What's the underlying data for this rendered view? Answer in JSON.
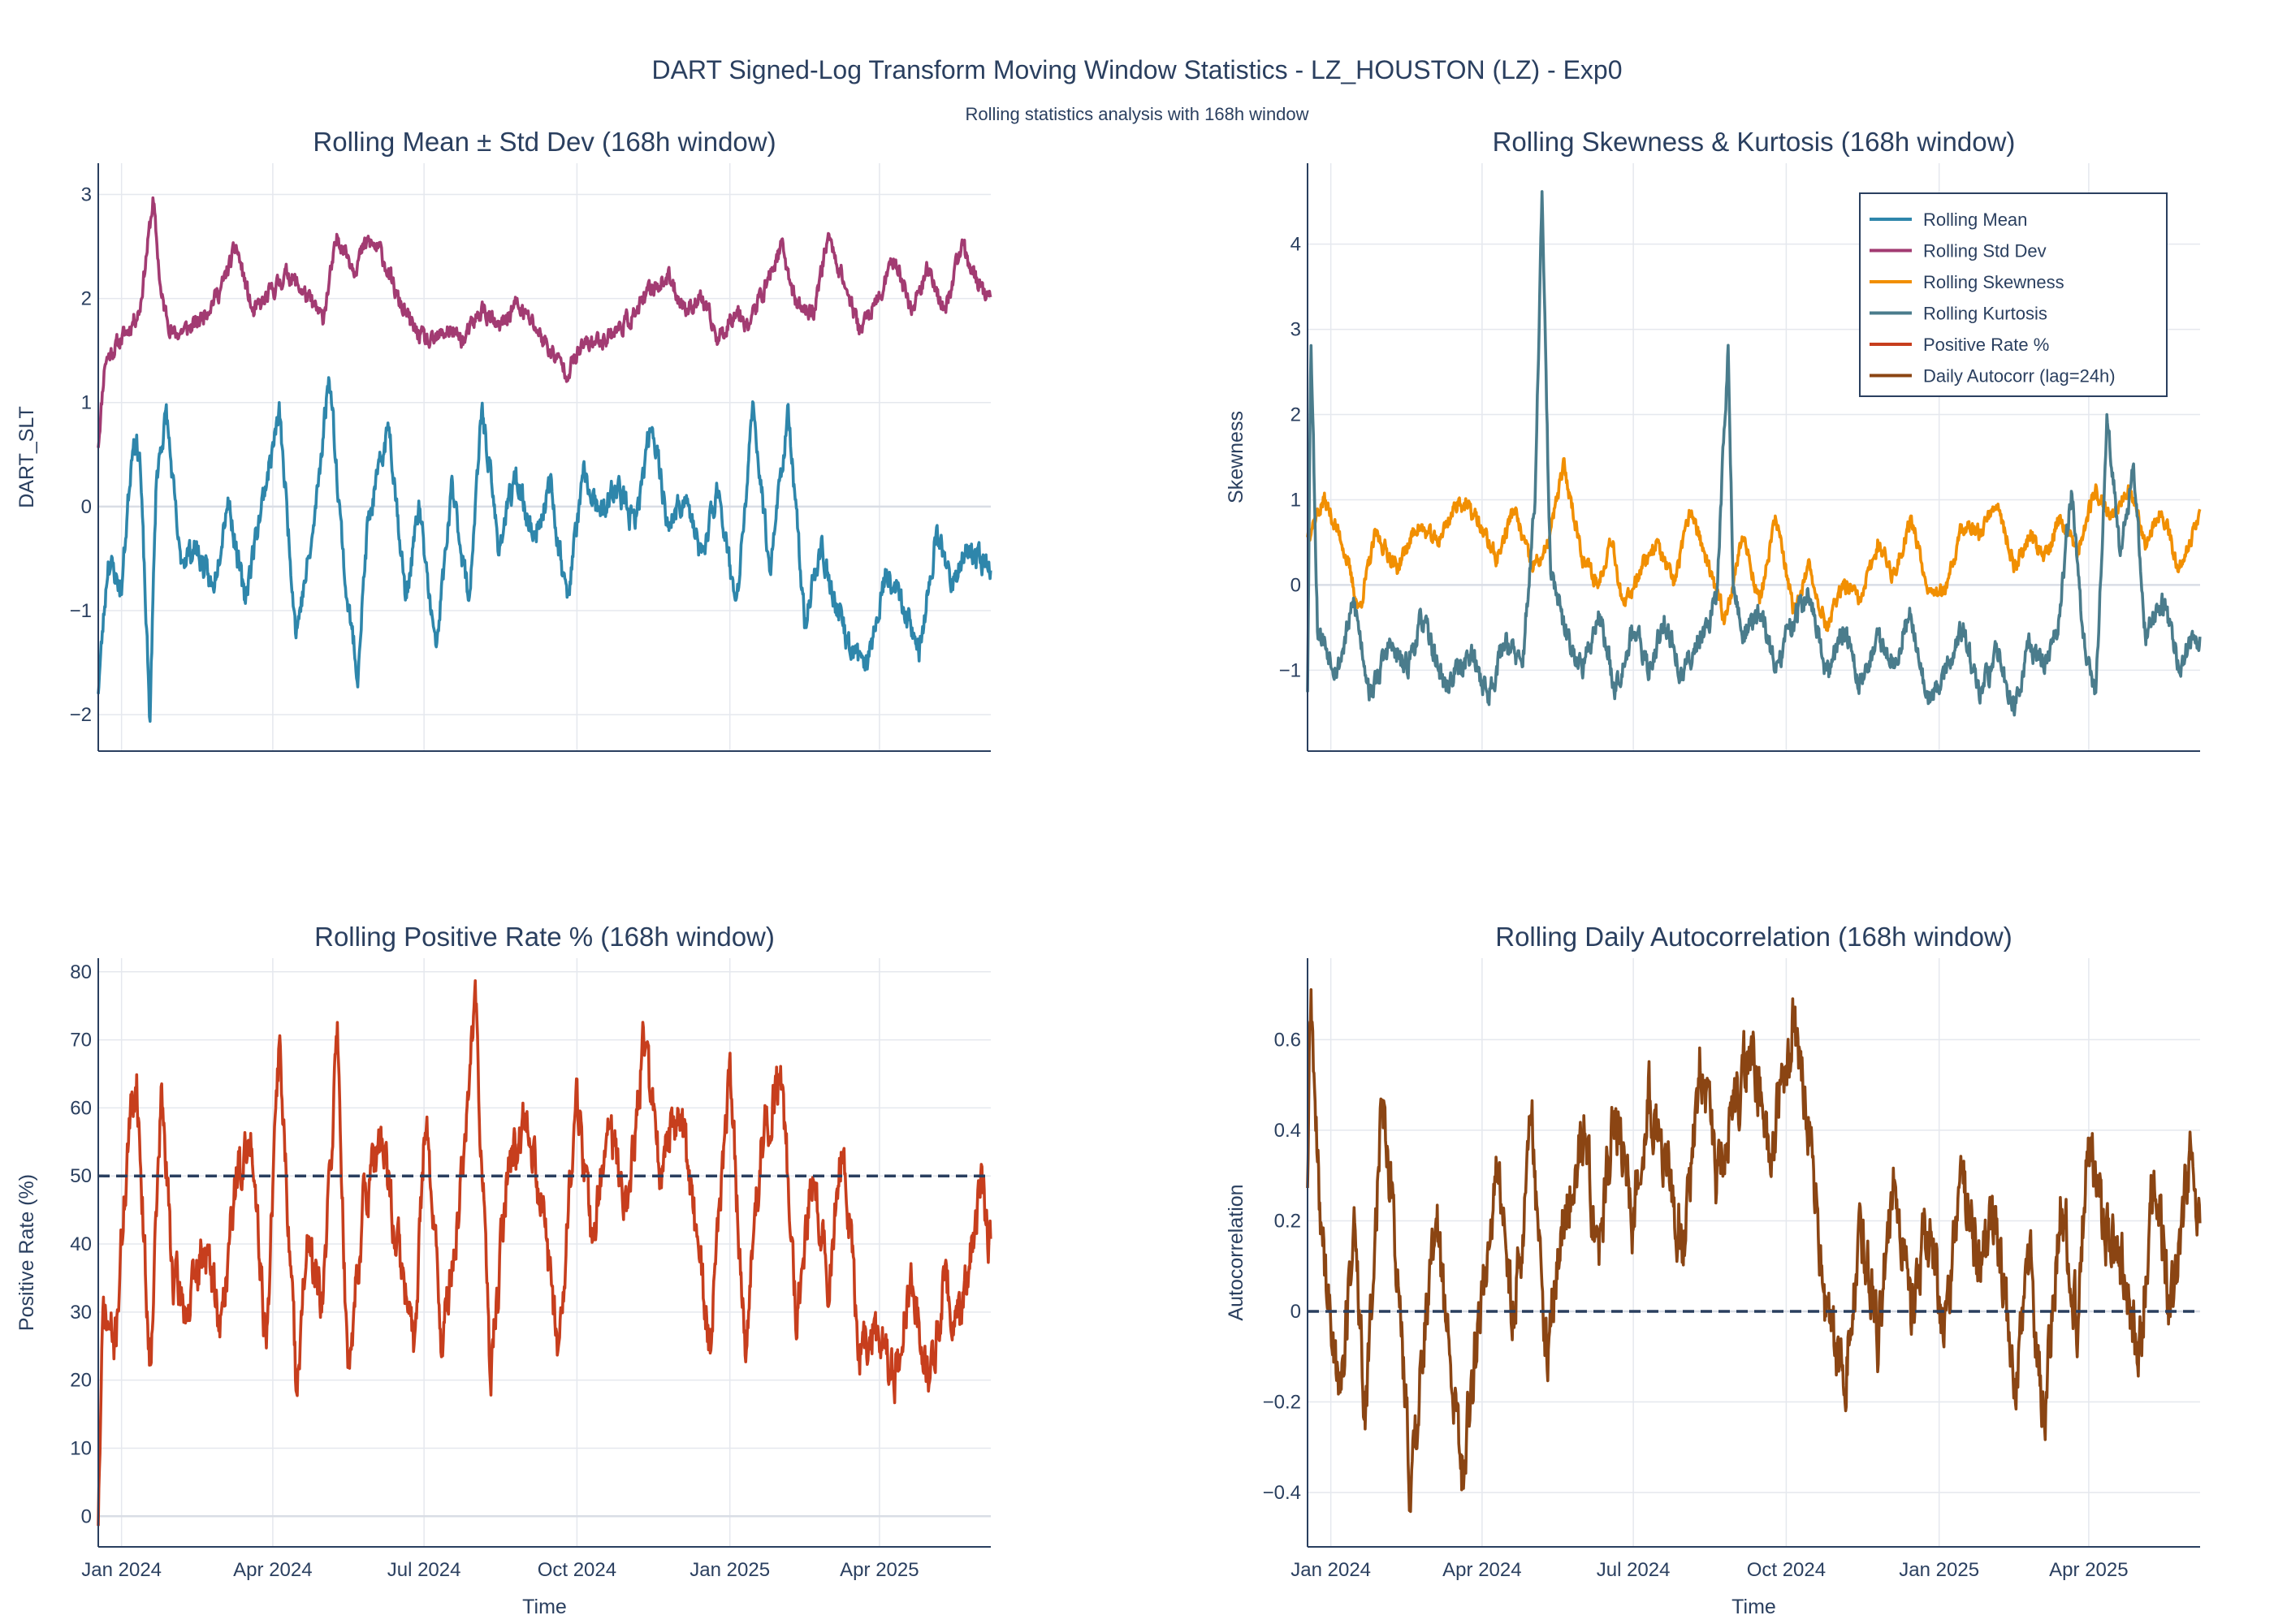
{
  "title": "DART Signed-Log Transform Moving Window Statistics - LZ_HOUSTON (LZ) - Exp0",
  "subtitle": "Rolling statistics analysis with 168h window",
  "colors": {
    "rolling_mean": "#2e86ab",
    "rolling_std": "#a23b72",
    "skewness": "#f18f01",
    "kurtosis": "#4a7c8c",
    "positive_rate": "#c73e1d",
    "autocorr": "#8b4513",
    "reference": "#2a3f5f"
  },
  "legend": {
    "position": "top-right of skewness panel",
    "items": [
      "Rolling Mean",
      "Rolling Std Dev",
      "Rolling Skewness",
      "Rolling Kurtosis",
      "Positive Rate %",
      "Daily Autocorr (lag=24h)"
    ]
  },
  "chart_data": [
    {
      "type": "line",
      "title": "Rolling Mean ± Std Dev (168h window)",
      "xlabel": "",
      "ylabel": "DART_SLT",
      "xlim": [
        "2023-12-18",
        "2025-06-07"
      ],
      "ylim": [
        -2.35,
        3.3
      ],
      "yticks": [
        -2,
        -1,
        0,
        1,
        2,
        3
      ],
      "xticks": [
        {
          "date": "2024-01-01",
          "label": "Jan 2024"
        },
        {
          "date": "2024-04-01",
          "label": "Apr 2024"
        },
        {
          "date": "2024-07-01",
          "label": "Jul 2024"
        },
        {
          "date": "2024-10-01",
          "label": "Oct 2024"
        },
        {
          "date": "2025-01-01",
          "label": "Jan 2025"
        },
        {
          "date": "2025-04-01",
          "label": "Apr 2025"
        }
      ],
      "show_xticklabels": false,
      "grid": true,
      "series": [
        {
          "name": "Rolling Std Dev",
          "color_key": "rolling_std",
          "jitter": 0.07,
          "seed": 11,
          "x": [
            "2023-12-18",
            "2023-12-22",
            "2024-01-05",
            "2024-01-12",
            "2024-01-20",
            "2024-01-25",
            "2024-02-01",
            "2024-02-15",
            "2024-03-01",
            "2024-03-10",
            "2024-03-20",
            "2024-03-28",
            "2024-04-10",
            "2024-04-20",
            "2024-05-01",
            "2024-05-10",
            "2024-05-20",
            "2024-05-28",
            "2024-06-05",
            "2024-06-15",
            "2024-06-25",
            "2024-07-05",
            "2024-07-15",
            "2024-07-25",
            "2024-08-05",
            "2024-08-15",
            "2024-08-25",
            "2024-09-05",
            "2024-09-15",
            "2024-09-25",
            "2024-10-05",
            "2024-10-15",
            "2024-10-25",
            "2024-11-05",
            "2024-11-15",
            "2024-11-25",
            "2024-12-05",
            "2024-12-15",
            "2024-12-25",
            "2025-01-05",
            "2025-01-12",
            "2025-01-22",
            "2025-02-01",
            "2025-02-10",
            "2025-02-20",
            "2025-03-01",
            "2025-03-10",
            "2025-03-20",
            "2025-04-01",
            "2025-04-10",
            "2025-04-20",
            "2025-05-01",
            "2025-05-10",
            "2025-05-20",
            "2025-06-01",
            "2025-06-07"
          ],
          "y": [
            0.6,
            1.4,
            1.7,
            1.9,
            2.95,
            2.0,
            1.65,
            1.75,
            2.1,
            2.5,
            1.85,
            2.0,
            2.25,
            2.05,
            1.8,
            2.6,
            2.3,
            2.55,
            2.45,
            2.0,
            1.7,
            1.55,
            1.7,
            1.6,
            1.9,
            1.7,
            1.95,
            1.75,
            1.5,
            1.3,
            1.55,
            1.6,
            1.7,
            1.85,
            2.1,
            2.2,
            1.9,
            2.0,
            1.6,
            1.9,
            1.75,
            2.1,
            2.5,
            1.95,
            1.85,
            2.6,
            2.2,
            1.7,
            2.0,
            2.4,
            1.9,
            2.3,
            1.85,
            2.5,
            2.1,
            2.0
          ]
        },
        {
          "name": "Rolling Mean",
          "color_key": "rolling_mean",
          "jitter": 0.1,
          "seed": 23,
          "x": [
            "2023-12-18",
            "2023-12-24",
            "2024-01-01",
            "2024-01-08",
            "2024-01-12",
            "2024-01-18",
            "2024-01-22",
            "2024-01-28",
            "2024-02-05",
            "2024-02-15",
            "2024-02-25",
            "2024-03-05",
            "2024-03-15",
            "2024-03-25",
            "2024-04-05",
            "2024-04-15",
            "2024-04-25",
            "2024-05-05",
            "2024-05-15",
            "2024-05-22",
            "2024-05-28",
            "2024-06-10",
            "2024-06-20",
            "2024-06-28",
            "2024-07-08",
            "2024-07-18",
            "2024-07-28",
            "2024-08-05",
            "2024-08-15",
            "2024-08-25",
            "2024-09-05",
            "2024-09-15",
            "2024-09-25",
            "2024-10-05",
            "2024-10-15",
            "2024-10-25",
            "2024-11-05",
            "2024-11-15",
            "2024-11-25",
            "2024-12-05",
            "2024-12-15",
            "2024-12-25",
            "2025-01-05",
            "2025-01-15",
            "2025-01-25",
            "2025-02-05",
            "2025-02-15",
            "2025-02-25",
            "2025-03-05",
            "2025-03-15",
            "2025-03-25",
            "2025-04-05",
            "2025-04-15",
            "2025-04-25",
            "2025-05-05",
            "2025-05-15",
            "2025-05-25",
            "2025-06-07"
          ],
          "y": [
            -1.75,
            -0.5,
            -0.8,
            0.7,
            0.5,
            -2.05,
            0.3,
            0.9,
            -0.5,
            -0.4,
            -0.8,
            0.1,
            -0.9,
            0.0,
            0.9,
            -1.2,
            -0.3,
            1.3,
            -0.8,
            -1.6,
            -0.2,
            0.8,
            -0.9,
            0.0,
            -1.4,
            0.2,
            -0.9,
            0.95,
            -0.4,
            0.3,
            -0.3,
            0.2,
            -0.9,
            0.3,
            -0.1,
            0.2,
            -0.2,
            0.85,
            -0.2,
            0.1,
            -0.5,
            0.2,
            -1.0,
            0.95,
            -0.6,
            0.9,
            -1.1,
            -0.4,
            -0.9,
            -1.4,
            -1.5,
            -0.6,
            -0.9,
            -1.4,
            -0.3,
            -0.7,
            -0.4,
            -0.6
          ]
        }
      ]
    },
    {
      "type": "line",
      "title": "Rolling Skewness & Kurtosis (168h window)",
      "xlabel": "",
      "ylabel": "Skewness",
      "xlim": [
        "2023-12-18",
        "2025-06-07"
      ],
      "ylim": [
        -1.95,
        4.95
      ],
      "yticks": [
        -1,
        0,
        1,
        2,
        3,
        4
      ],
      "show_xticklabels": false,
      "grid": true,
      "series": [
        {
          "name": "Rolling Skewness",
          "color_key": "skewness",
          "jitter": 0.08,
          "seed": 37,
          "x": [
            "2023-12-18",
            "2023-12-28",
            "2024-01-08",
            "2024-01-18",
            "2024-01-28",
            "2024-02-10",
            "2024-02-22",
            "2024-03-05",
            "2024-03-18",
            "2024-03-28",
            "2024-04-10",
            "2024-04-20",
            "2024-05-01",
            "2024-05-10",
            "2024-05-20",
            "2024-06-01",
            "2024-06-10",
            "2024-06-18",
            "2024-06-25",
            "2024-07-05",
            "2024-07-15",
            "2024-07-25",
            "2024-08-05",
            "2024-08-15",
            "2024-08-25",
            "2024-09-05",
            "2024-09-15",
            "2024-09-25",
            "2024-10-05",
            "2024-10-15",
            "2024-10-25",
            "2024-11-05",
            "2024-11-15",
            "2024-11-25",
            "2024-12-05",
            "2024-12-15",
            "2024-12-25",
            "2025-01-05",
            "2025-01-15",
            "2025-01-25",
            "2025-02-05",
            "2025-02-15",
            "2025-02-25",
            "2025-03-05",
            "2025-03-15",
            "2025-03-25",
            "2025-04-05",
            "2025-04-15",
            "2025-04-25",
            "2025-05-05",
            "2025-05-15",
            "2025-05-25",
            "2025-06-07"
          ],
          "y": [
            0.6,
            1.0,
            0.5,
            -0.3,
            0.6,
            0.2,
            0.7,
            0.5,
            1.0,
            0.8,
            0.3,
            0.9,
            0.2,
            0.4,
            1.4,
            0.3,
            0.0,
            0.6,
            -0.3,
            0.2,
            0.5,
            0.0,
            0.9,
            0.2,
            -0.4,
            0.6,
            -0.2,
            0.8,
            -0.3,
            0.2,
            -0.5,
            0.0,
            -0.2,
            0.5,
            0.1,
            0.8,
            0.0,
            -0.1,
            0.7,
            0.6,
            1.0,
            0.2,
            0.6,
            0.3,
            0.8,
            0.4,
            1.1,
            0.8,
            1.2,
            0.5,
            0.9,
            0.2,
            0.8
          ]
        },
        {
          "name": "Rolling Kurtosis",
          "color_key": "kurtosis",
          "jitter": 0.12,
          "seed": 53,
          "x": [
            "2023-12-18",
            "2023-12-20",
            "2023-12-24",
            "2024-01-05",
            "2024-01-15",
            "2024-01-25",
            "2024-02-05",
            "2024-02-15",
            "2024-02-25",
            "2024-03-10",
            "2024-03-25",
            "2024-04-05",
            "2024-04-15",
            "2024-04-25",
            "2024-05-03",
            "2024-05-07",
            "2024-05-12",
            "2024-05-20",
            "2024-06-01",
            "2024-06-10",
            "2024-06-20",
            "2024-07-01",
            "2024-07-10",
            "2024-07-20",
            "2024-07-30",
            "2024-08-10",
            "2024-08-20",
            "2024-08-27",
            "2024-08-30",
            "2024-09-05",
            "2024-09-15",
            "2024-09-25",
            "2024-10-05",
            "2024-10-15",
            "2024-10-25",
            "2024-11-05",
            "2024-11-15",
            "2024-11-25",
            "2024-12-05",
            "2024-12-15",
            "2024-12-25",
            "2025-01-05",
            "2025-01-15",
            "2025-01-25",
            "2025-02-05",
            "2025-02-15",
            "2025-02-25",
            "2025-03-05",
            "2025-03-15",
            "2025-03-22",
            "2025-03-28",
            "2025-04-05",
            "2025-04-12",
            "2025-04-20",
            "2025-04-28",
            "2025-05-05",
            "2025-05-15",
            "2025-05-25",
            "2025-06-07"
          ],
          "y": [
            -1.2,
            3.0,
            -0.5,
            -1.0,
            -0.2,
            -1.3,
            -0.7,
            -1.0,
            -0.4,
            -1.2,
            -0.8,
            -1.3,
            -0.6,
            -1.0,
            1.0,
            4.6,
            0.2,
            -0.5,
            -1.0,
            -0.3,
            -1.2,
            -0.5,
            -1.0,
            -0.4,
            -1.1,
            -0.6,
            -0.2,
            2.8,
            0.0,
            -0.6,
            -0.3,
            -1.0,
            -0.4,
            -0.1,
            -1.1,
            -0.5,
            -1.2,
            -0.6,
            -0.9,
            -0.3,
            -1.4,
            -1.0,
            -0.5,
            -1.3,
            -0.8,
            -1.4,
            -0.7,
            -1.0,
            -0.3,
            1.2,
            -0.6,
            -1.4,
            2.0,
            0.3,
            1.4,
            -0.6,
            -0.2,
            -0.9,
            -0.6
          ]
        }
      ]
    },
    {
      "type": "line",
      "title": "Rolling Positive Rate % (168h window)",
      "xlabel": "Time",
      "ylabel": "Positive Rate (%)",
      "xlim": [
        "2023-12-18",
        "2025-06-07"
      ],
      "ylim": [
        -4.5,
        82
      ],
      "yticks": [
        0,
        10,
        20,
        30,
        40,
        50,
        60,
        70,
        80
      ],
      "show_xticklabels": true,
      "grid": true,
      "reference_line": {
        "y": 50,
        "style": "dashed"
      },
      "series": [
        {
          "name": "Positive Rate %",
          "color_key": "positive_rate",
          "jitter": 3.0,
          "seed": 71,
          "x": [
            "2023-12-18",
            "2023-12-21",
            "2023-12-28",
            "2024-01-05",
            "2024-01-10",
            "2024-01-18",
            "2024-01-25",
            "2024-02-01",
            "2024-02-10",
            "2024-02-20",
            "2024-03-01",
            "2024-03-10",
            "2024-03-20",
            "2024-03-28",
            "2024-04-05",
            "2024-04-15",
            "2024-04-22",
            "2024-05-01",
            "2024-05-10",
            "2024-05-16",
            "2024-05-25",
            "2024-06-05",
            "2024-06-15",
            "2024-06-25",
            "2024-07-02",
            "2024-07-12",
            "2024-07-22",
            "2024-08-01",
            "2024-08-10",
            "2024-08-20",
            "2024-09-01",
            "2024-09-10",
            "2024-09-20",
            "2024-10-01",
            "2024-10-10",
            "2024-10-20",
            "2024-11-01",
            "2024-11-10",
            "2024-11-20",
            "2024-12-01",
            "2024-12-10",
            "2024-12-20",
            "2025-01-01",
            "2025-01-10",
            "2025-01-20",
            "2025-02-01",
            "2025-02-10",
            "2025-02-20",
            "2025-03-01",
            "2025-03-10",
            "2025-03-20",
            "2025-04-01",
            "2025-04-10",
            "2025-04-20",
            "2025-05-01",
            "2025-05-10",
            "2025-05-20",
            "2025-06-01",
            "2025-06-07"
          ],
          "y": [
            0,
            30,
            25,
            55,
            65,
            22,
            62,
            35,
            30,
            40,
            28,
            50,
            55,
            25,
            70,
            20,
            40,
            30,
            72,
            20,
            45,
            55,
            40,
            25,
            60,
            25,
            45,
            75,
            20,
            50,
            60,
            45,
            25,
            62,
            40,
            58,
            45,
            70,
            50,
            60,
            45,
            25,
            65,
            25,
            55,
            65,
            30,
            50,
            35,
            55,
            25,
            28,
            20,
            35,
            20,
            35,
            28,
            50,
            38
          ]
        }
      ]
    },
    {
      "type": "line",
      "title": "Rolling Daily Autocorrelation (168h window)",
      "xlabel": "Time",
      "ylabel": "Autocorrelation",
      "xlim": [
        "2023-12-18",
        "2025-06-07"
      ],
      "ylim": [
        -0.52,
        0.78
      ],
      "yticks": [
        -0.4,
        -0.2,
        0,
        0.2,
        0.4,
        0.6
      ],
      "show_xticklabels": true,
      "grid": true,
      "reference_line": {
        "y": 0,
        "style": "dashed"
      },
      "series": [
        {
          "name": "Daily Autocorr (lag=24h)",
          "color_key": "autocorr",
          "jitter": 0.06,
          "seed": 89,
          "x": [
            "2023-12-18",
            "2023-12-20",
            "2023-12-24",
            "2024-01-01",
            "2024-01-08",
            "2024-01-15",
            "2024-01-22",
            "2024-02-01",
            "2024-02-10",
            "2024-02-18",
            "2024-02-25",
            "2024-03-05",
            "2024-03-12",
            "2024-03-20",
            "2024-04-01",
            "2024-04-10",
            "2024-04-20",
            "2024-05-01",
            "2024-05-10",
            "2024-05-20",
            "2024-06-01",
            "2024-06-10",
            "2024-06-20",
            "2024-07-01",
            "2024-07-10",
            "2024-07-20",
            "2024-08-01",
            "2024-08-10",
            "2024-08-20",
            "2024-09-01",
            "2024-09-10",
            "2024-09-20",
            "2024-10-01",
            "2024-10-05",
            "2024-10-15",
            "2024-10-25",
            "2024-11-05",
            "2024-11-15",
            "2024-11-25",
            "2024-12-05",
            "2024-12-15",
            "2024-12-25",
            "2025-01-05",
            "2025-01-15",
            "2025-01-25",
            "2025-02-05",
            "2025-02-15",
            "2025-02-25",
            "2025-03-05",
            "2025-03-15",
            "2025-03-25",
            "2025-04-01",
            "2025-04-10",
            "2025-04-20",
            "2025-05-01",
            "2025-05-10",
            "2025-05-20",
            "2025-06-01",
            "2025-06-07"
          ],
          "y": [
            0.3,
            0.7,
            0.3,
            -0.05,
            -0.15,
            0.2,
            -0.25,
            0.5,
            0.1,
            -0.4,
            -0.1,
            0.2,
            -0.1,
            -0.35,
            0.05,
            0.3,
            0.0,
            0.4,
            -0.1,
            0.2,
            0.4,
            0.1,
            0.45,
            0.2,
            0.5,
            0.3,
            0.15,
            0.55,
            0.3,
            0.45,
            0.6,
            0.35,
            0.5,
            0.65,
            0.4,
            0.0,
            -0.15,
            0.2,
            -0.05,
            0.3,
            0.0,
            0.2,
            -0.05,
            0.3,
            0.1,
            0.2,
            -0.15,
            0.1,
            -0.25,
            0.25,
            0.0,
            0.4,
            0.2,
            0.1,
            -0.1,
            0.3,
            0.0,
            0.35,
            0.2
          ]
        }
      ]
    }
  ]
}
